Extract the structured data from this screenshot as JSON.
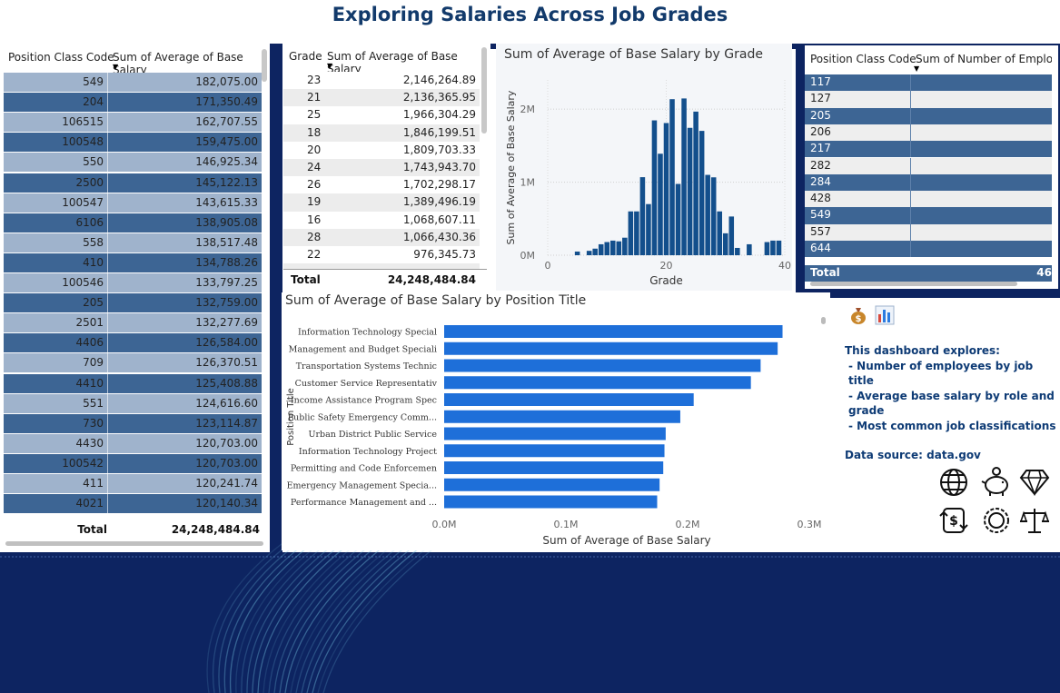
{
  "title": "Exploring Salaries Across Job Grades",
  "colors": {
    "navy": "#0d2461",
    "title": "#123a6b",
    "bar_blue": "#1e6fd9",
    "hist_blue": "#134f8c",
    "row_dark": "#3d6594",
    "row_light": "#9fb3cc"
  },
  "table1": {
    "col1": "Position Class Code",
    "col2": "Sum of Average of Base Salary",
    "rows": [
      [
        "549",
        "182,075.00"
      ],
      [
        "204",
        "171,350.49"
      ],
      [
        "106515",
        "162,707.55"
      ],
      [
        "100548",
        "159,475.00"
      ],
      [
        "550",
        "146,925.34"
      ],
      [
        "2500",
        "145,122.13"
      ],
      [
        "100547",
        "143,615.33"
      ],
      [
        "6106",
        "138,905.08"
      ],
      [
        "558",
        "138,517.48"
      ],
      [
        "410",
        "134,788.26"
      ],
      [
        "100546",
        "133,797.25"
      ],
      [
        "205",
        "132,759.00"
      ],
      [
        "2501",
        "132,277.69"
      ],
      [
        "4406",
        "126,584.00"
      ],
      [
        "709",
        "126,370.51"
      ],
      [
        "4410",
        "125,408.88"
      ],
      [
        "551",
        "124,616.60"
      ],
      [
        "730",
        "123,114.87"
      ],
      [
        "4430",
        "120,703.00"
      ],
      [
        "100542",
        "120,703.00"
      ],
      [
        "411",
        "120,241.74"
      ],
      [
        "4021",
        "120,140.34"
      ]
    ],
    "total_label": "Total",
    "total_value": "24,248,484.84"
  },
  "table2": {
    "col1": "Grade",
    "col2": "Sum of Average of Base Salary",
    "rows": [
      [
        "23",
        "2,146,264.89"
      ],
      [
        "21",
        "2,136,365.95"
      ],
      [
        "25",
        "1,966,304.29"
      ],
      [
        "18",
        "1,846,199.51"
      ],
      [
        "20",
        "1,809,703.33"
      ],
      [
        "24",
        "1,743,943.70"
      ],
      [
        "26",
        "1,702,298.17"
      ],
      [
        "19",
        "1,389,496.19"
      ],
      [
        "16",
        "1,068,607.11"
      ],
      [
        "28",
        "1,066,430.36"
      ],
      [
        "22",
        "976,345.73"
      ]
    ],
    "total_label": "Total",
    "total_value": "24,248,484.84"
  },
  "table3": {
    "col1": "Position Class Code",
    "col2": "Sum of Number of Employ",
    "rows": [
      "117",
      "127",
      "205",
      "206",
      "217",
      "282",
      "284",
      "428",
      "549",
      "557",
      "644"
    ],
    "total_label": "Total",
    "total_value": "46"
  },
  "chart_data": [
    {
      "type": "bar",
      "title": "Sum of Average of Base Salary by Grade",
      "xlabel": "Grade",
      "ylabel": "Sum of Average of Base Salary",
      "x_ticks": [
        "0",
        "20",
        "40"
      ],
      "y_ticks": [
        "0M",
        "1M",
        "2M"
      ],
      "xlim": [
        0,
        40
      ],
      "ylim": [
        0,
        2400000
      ],
      "x": [
        5,
        7,
        8,
        9,
        10,
        11,
        12,
        13,
        14,
        15,
        16,
        17,
        18,
        19,
        20,
        21,
        22,
        23,
        24,
        25,
        26,
        27,
        28,
        29,
        30,
        31,
        32,
        34,
        37,
        38,
        39
      ],
      "values": [
        50000,
        60000,
        90000,
        150000,
        180000,
        200000,
        190000,
        240000,
        600000,
        600000,
        1068607,
        700000,
        1846200,
        1389500,
        1809700,
        2136400,
        976300,
        2146300,
        1743900,
        1966300,
        1702300,
        1100000,
        1066400,
        600000,
        300000,
        530000,
        100000,
        150000,
        180000,
        200000,
        200000
      ]
    },
    {
      "type": "bar",
      "orientation": "horizontal",
      "title": "Sum of Average of Base Salary by Position Title",
      "xlabel": "Sum of Average of Base Salary",
      "ylabel": "Position Title",
      "x_ticks": [
        "0.0M",
        "0.1M",
        "0.2M",
        "0.3M"
      ],
      "xlim": [
        0,
        300000
      ],
      "categories": [
        "Information Technology Special",
        "Management and Budget Speciali",
        "Transportation Systems Technic",
        "Customer Service Representativ",
        "Income Assistance Program Spec",
        "Public Safety Emergency Comm...",
        "Urban District Public Service",
        "Information Technology Project",
        "Permitting and Code Enforcemen",
        "Emergency Management Specia...",
        "Performance Management and ..."
      ],
      "values": [
        278000,
        274000,
        260000,
        252000,
        205000,
        194000,
        182000,
        181000,
        180000,
        177000,
        175000
      ]
    }
  ],
  "description": {
    "intro": "This dashboard explores:",
    "items": [
      "- Number of employees by job title",
      "- Average base salary by role and grade",
      "- Most common job classifications"
    ],
    "source": "Data source: data.gov"
  },
  "icons": [
    "money-bag-icon",
    "bar-chart-icon",
    "globe-icon",
    "piggy-bank-icon",
    "diamond-icon",
    "dollar-exchange-icon",
    "award-badge-icon",
    "scales-icon"
  ]
}
